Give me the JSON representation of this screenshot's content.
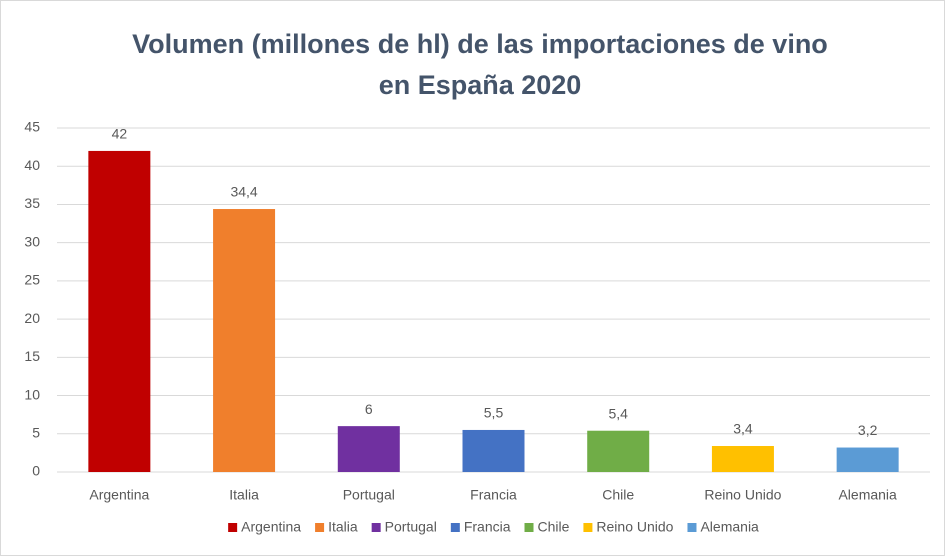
{
  "chart_data": {
    "type": "bar",
    "title": [
      "Volumen (millones de hl) de las importaciones de vino",
      "en España 2020"
    ],
    "categories": [
      "Argentina",
      "Italia",
      "Portugal",
      "Francia",
      "Chile",
      "Reino Unido",
      "Alemania"
    ],
    "values": [
      42,
      34.4,
      6,
      5.5,
      5.4,
      3.4,
      3.2
    ],
    "value_labels": [
      "42",
      "34,4",
      "6",
      "5,5",
      "5,4",
      "3,4",
      "3,2"
    ],
    "colors": [
      "#c00000",
      "#f07f2c",
      "#7030a0",
      "#4472c4",
      "#70ad47",
      "#ffc000",
      "#5b9bd5"
    ],
    "ylim": [
      0,
      45
    ],
    "yticks": [
      0,
      5,
      10,
      15,
      20,
      25,
      30,
      35,
      40,
      45
    ],
    "grid": true,
    "legend": "bottom"
  }
}
